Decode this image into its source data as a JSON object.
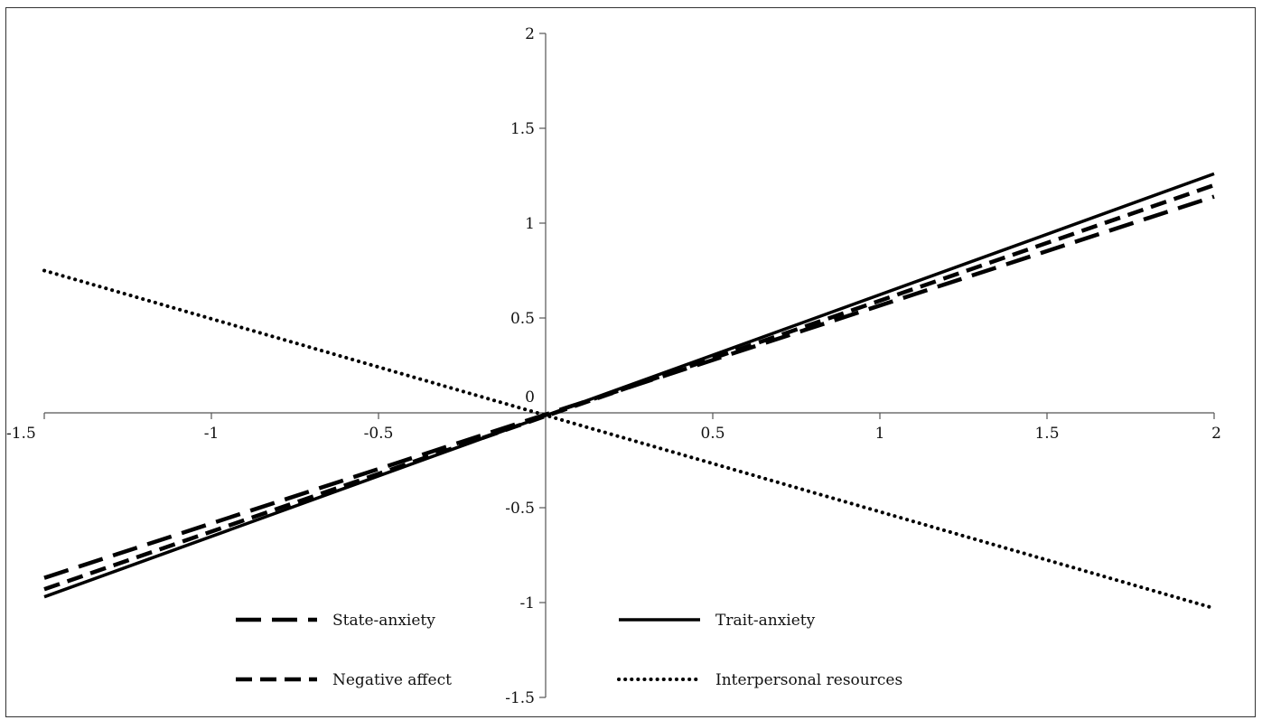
{
  "chart_data": {
    "type": "line",
    "title": "",
    "xlabel": "",
    "ylabel": "",
    "xlim": [
      -1.5,
      2
    ],
    "ylim": [
      -1.5,
      2
    ],
    "x_ticks": [
      {
        "value": -1.5,
        "label": "-1.5"
      },
      {
        "value": -1,
        "label": "-1"
      },
      {
        "value": -0.5,
        "label": "-0.5"
      },
      {
        "value": 0.5,
        "label": "0.5"
      },
      {
        "value": 1,
        "label": "1"
      },
      {
        "value": 1.5,
        "label": "1.5"
      },
      {
        "value": 2,
        "label": "2"
      }
    ],
    "y_ticks": [
      {
        "value": 2,
        "label": "2"
      },
      {
        "value": 1.5,
        "label": "1.5"
      },
      {
        "value": 1,
        "label": "1"
      },
      {
        "value": 0.5,
        "label": "0.5"
      },
      {
        "value": -0.5,
        "label": "-0.5"
      },
      {
        "value": -1,
        "label": "-1"
      },
      {
        "value": -1.5,
        "label": "-1.5"
      }
    ],
    "origin_label": "0",
    "grid": false,
    "legend_position": "bottom",
    "series": [
      {
        "name": "State-anxiety",
        "style": "long-dash",
        "color": "#000000",
        "x": [
          -1.5,
          2
        ],
        "y": [
          -0.87,
          1.14
        ]
      },
      {
        "name": "Trait-anxiety",
        "style": "solid",
        "color": "#000000",
        "x": [
          -1.5,
          2
        ],
        "y": [
          -0.97,
          1.26
        ]
      },
      {
        "name": "Negative affect",
        "style": "dash",
        "color": "#000000",
        "x": [
          -1.5,
          2
        ],
        "y": [
          -0.93,
          1.2
        ]
      },
      {
        "name": "Interpersonal resources",
        "style": "dotted",
        "color": "#000000",
        "x": [
          -1.5,
          2
        ],
        "y": [
          0.75,
          -1.03
        ]
      }
    ]
  }
}
